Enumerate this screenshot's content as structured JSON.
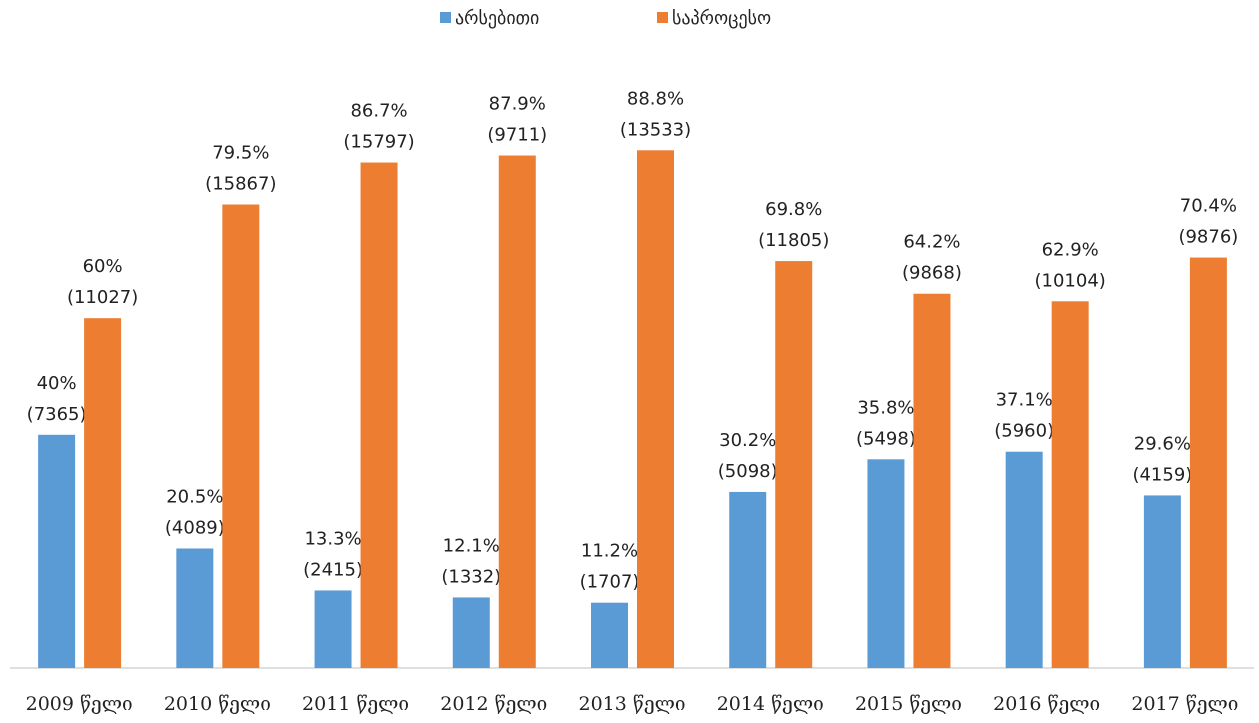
{
  "chart_data": {
    "type": "bar",
    "categories": [
      "2009 წელი",
      "2010 წელი",
      "2011 წელი",
      "2012 წელი",
      "2013 წელი",
      "2014 წელი",
      "2015 წელი",
      "2016 წელი",
      "2017 წელი"
    ],
    "series": [
      {
        "name": "არსებითი",
        "color": "#5b9bd5",
        "values": [
          40,
          20.5,
          13.3,
          12.1,
          11.2,
          30.2,
          35.8,
          37.1,
          29.6
        ],
        "value_labels": [
          "40%",
          "20.5%",
          "13.3%",
          "12.1%",
          "11.2%",
          "30.2%",
          "35.8%",
          "37.1%",
          "29.6%"
        ],
        "count_labels": [
          "(7365)",
          "(4089)",
          "(2415)",
          "(1332)",
          "(1707)",
          "(5098)",
          "(5498)",
          "(5960)",
          "(4159)"
        ]
      },
      {
        "name": "საპროცესო",
        "color": "#ed7d31",
        "values": [
          60,
          79.5,
          86.7,
          87.9,
          88.8,
          69.8,
          64.2,
          62.9,
          70.4
        ],
        "value_labels": [
          "60%",
          "79.5%",
          "86.7%",
          "87.9%",
          "88.8%",
          "69.8%",
          "64.2%",
          "62.9%",
          "70.4%"
        ],
        "count_labels": [
          "(11027)",
          "(15867)",
          "(15797)",
          "(9711)",
          "(13533)",
          "(11805)",
          "(9868)",
          "(10104)",
          "(9876)"
        ]
      }
    ],
    "ylim": [
      0,
      100
    ],
    "legend": "top"
  }
}
